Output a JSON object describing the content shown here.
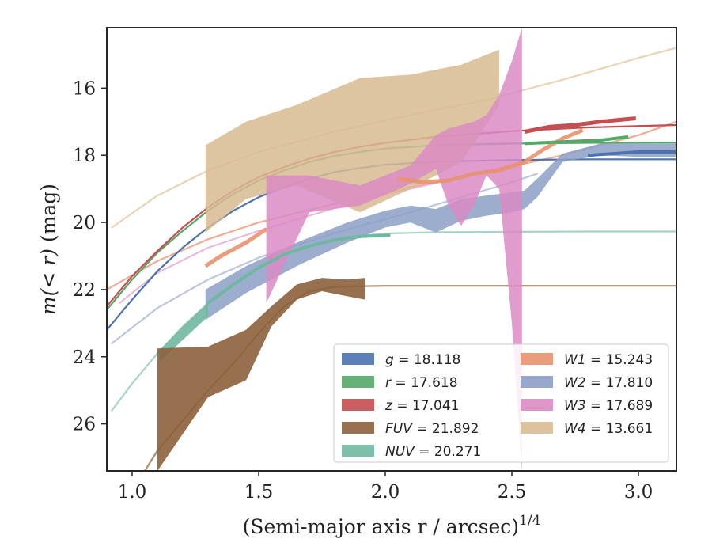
{
  "chart_data": {
    "type": "line",
    "xlabel": "(Semi-major axis r / arcsec)",
    "xlabel_exponent": "1/4",
    "ylabel_main": "m(< r)",
    "ylabel_unit": "(mag)",
    "xlim": [
      0.9,
      3.15
    ],
    "ylim": [
      27.4,
      14.2
    ],
    "y_inverted": true,
    "xticks": [
      1.0,
      1.5,
      2.0,
      2.5,
      3.0
    ],
    "xtick_labels": [
      "1.0",
      "1.5",
      "2.0",
      "2.5",
      "3.0"
    ],
    "yticks": [
      16,
      18,
      20,
      22,
      24,
      26
    ],
    "ytick_labels": [
      "16",
      "18",
      "20",
      "22",
      "24",
      "26"
    ],
    "legend_position": "lower-right",
    "legend": [
      {
        "name": "g",
        "value": "18.118",
        "color": "#4c72b0"
      },
      {
        "name": "r",
        "value": "17.618",
        "color": "#55a868"
      },
      {
        "name": "z",
        "value": "17.041",
        "color": "#c44e52"
      },
      {
        "name": "FUV",
        "value": "21.892",
        "color": "#8c613c"
      },
      {
        "name": "NUV",
        "value": "20.271",
        "color": "#6fb8a0"
      },
      {
        "name": "W1",
        "value": "15.243",
        "color": "#e8926c"
      },
      {
        "name": "W2",
        "value": "17.810",
        "color": "#8c9fc6"
      },
      {
        "name": "W3",
        "value": "17.689",
        "color": "#da8bc3"
      },
      {
        "name": "W4",
        "value": "13.661",
        "color": "#d8bb92"
      }
    ],
    "models": [
      {
        "series": "W4",
        "color": "#e8cfae",
        "width": 2.2,
        "opacity": 0.9,
        "x": [
          0.92,
          1.1,
          1.3,
          1.5,
          1.8,
          2.1,
          2.4,
          2.7,
          3.0,
          3.15
        ],
        "y": [
          20.15,
          19.2,
          18.45,
          17.9,
          17.3,
          16.8,
          16.35,
          15.75,
          15.1,
          14.8
        ]
      },
      {
        "series": "W1",
        "color": "#efa488",
        "width": 2.2,
        "opacity": 0.9,
        "x": [
          0.9,
          1.1,
          1.3,
          1.5,
          1.8,
          2.1,
          2.4,
          2.7,
          3.0,
          3.15
        ],
        "y": [
          22.0,
          21.15,
          20.5,
          20.0,
          19.45,
          18.95,
          18.5,
          18.0,
          17.4,
          17.0
        ]
      },
      {
        "series": "W3",
        "color": "#e7a8d6",
        "width": 2.0,
        "opacity": 0.85,
        "x": [
          0.95,
          1.1,
          1.3,
          1.5,
          1.7,
          1.9,
          2.1,
          2.3,
          2.55
        ],
        "y": [
          22.4,
          21.5,
          20.75,
          20.25,
          19.8,
          19.35,
          19.0,
          18.65,
          18.2
        ]
      },
      {
        "series": "W2",
        "color": "#b8c3df",
        "width": 2.2,
        "opacity": 0.95,
        "x": [
          0.92,
          1.1,
          1.3,
          1.5,
          1.7,
          1.9,
          2.1,
          2.3,
          2.5,
          2.6
        ],
        "y": [
          23.6,
          22.55,
          21.7,
          21.05,
          20.55,
          20.1,
          19.7,
          19.25,
          18.8,
          18.55
        ]
      },
      {
        "series": "NUV",
        "color": "#a2d2c3",
        "width": 2.2,
        "opacity": 0.95,
        "x": [
          0.92,
          1.0,
          1.1,
          1.2,
          1.3,
          1.4,
          1.5,
          1.6,
          1.7,
          1.8,
          1.9,
          2.0,
          2.2,
          2.5,
          2.8,
          3.15
        ],
        "y": [
          25.6,
          24.8,
          23.9,
          23.1,
          22.4,
          21.85,
          21.35,
          20.95,
          20.7,
          20.5,
          20.4,
          20.33,
          20.29,
          20.28,
          20.27,
          20.27
        ]
      },
      {
        "series": "FUV",
        "color": "#a97e5c",
        "width": 2.2,
        "opacity": 0.9,
        "x": [
          1.05,
          1.1,
          1.2,
          1.3,
          1.4,
          1.5,
          1.6,
          1.7,
          1.8,
          1.9,
          2.0,
          2.5,
          3.15
        ],
        "y": [
          27.4,
          26.8,
          25.9,
          25.0,
          24.2,
          23.3,
          22.5,
          22.05,
          21.92,
          21.9,
          21.89,
          21.89,
          21.89
        ]
      },
      {
        "series": "g",
        "color": "#4c72b0",
        "width": 2.2,
        "opacity": 1.0,
        "x": [
          0.9,
          1.0,
          1.1,
          1.2,
          1.3,
          1.4,
          1.5,
          1.6,
          1.7,
          1.8,
          1.9,
          2.0,
          2.2,
          2.5,
          2.8,
          3.15
        ],
        "y": [
          23.2,
          22.3,
          21.45,
          20.75,
          20.15,
          19.65,
          19.25,
          18.95,
          18.7,
          18.5,
          18.38,
          18.28,
          18.19,
          18.14,
          18.12,
          18.12
        ]
      },
      {
        "series": "r",
        "color": "#55a868",
        "width": 2.2,
        "opacity": 1.0,
        "x": [
          0.9,
          1.0,
          1.1,
          1.2,
          1.3,
          1.4,
          1.5,
          1.6,
          1.7,
          1.8,
          1.9,
          2.0,
          2.2,
          2.5,
          2.8,
          3.15
        ],
        "y": [
          22.6,
          21.7,
          20.9,
          20.25,
          19.65,
          19.15,
          18.75,
          18.45,
          18.2,
          18.02,
          17.9,
          17.8,
          17.7,
          17.65,
          17.63,
          17.62
        ]
      },
      {
        "series": "z",
        "color": "#c44e52",
        "width": 2.2,
        "opacity": 1.0,
        "x": [
          0.9,
          1.0,
          1.1,
          1.2,
          1.3,
          1.4,
          1.5,
          1.6,
          1.7,
          1.8,
          1.9,
          2.0,
          2.2,
          2.5,
          2.8,
          3.15
        ],
        "y": [
          22.5,
          21.6,
          20.85,
          20.15,
          19.55,
          19.05,
          18.65,
          18.35,
          18.1,
          17.9,
          17.75,
          17.63,
          17.45,
          17.28,
          17.17,
          17.1
        ]
      }
    ],
    "bands": [
      {
        "series": "W4",
        "color": "#d8bb92",
        "opacity": 0.85,
        "x": [
          1.29,
          1.45,
          1.65,
          1.9,
          2.1,
          2.3,
          2.45
        ],
        "y_upper": [
          17.7,
          17.0,
          16.5,
          15.7,
          15.6,
          15.3,
          14.85
        ],
        "y_lower": [
          20.3,
          19.3,
          18.9,
          19.7,
          19.0,
          18.2,
          16.5
        ]
      },
      {
        "series": "W2",
        "color": "#8c9fc6",
        "opacity": 0.85,
        "x": [
          1.29,
          1.45,
          1.65,
          1.85,
          2.0,
          2.1,
          2.2,
          2.3,
          2.4,
          2.5,
          2.55,
          2.6,
          2.7,
          2.85,
          3.0,
          3.15
        ],
        "y_upper": [
          22.0,
          21.3,
          20.6,
          20.0,
          19.65,
          19.5,
          19.6,
          19.3,
          19.2,
          19.1,
          19.05,
          18.7,
          17.95,
          17.65,
          17.65,
          17.65
        ],
        "y_lower": [
          22.9,
          22.1,
          21.3,
          20.6,
          20.15,
          20.0,
          20.3,
          19.95,
          19.8,
          19.7,
          19.6,
          19.25,
          18.2,
          18.0,
          18.05,
          18.05
        ]
      },
      {
        "series": "W3",
        "color": "#da8bc3",
        "opacity": 0.85,
        "x": [
          1.53,
          1.7,
          1.9,
          2.1,
          2.2,
          2.25,
          2.3,
          2.35,
          2.4,
          2.45,
          2.5,
          2.54
        ],
        "y_upper": [
          18.6,
          18.6,
          18.9,
          18.3,
          17.4,
          17.2,
          17.1,
          17.0,
          16.8,
          16.2,
          15.2,
          14.2
        ],
        "y_lower": [
          22.4,
          19.7,
          19.5,
          18.85,
          18.4,
          19.5,
          20.1,
          19.5,
          18.6,
          19.0,
          23.0,
          27.4
        ]
      },
      {
        "series": "NUV",
        "color": "#6fb8a0",
        "opacity": 0.9,
        "x": [
          1.11,
          1.2,
          1.3
        ],
        "y_upper": [
          23.8,
          23.1,
          22.4
        ],
        "y_lower": [
          24.15,
          23.5,
          22.8
        ]
      },
      {
        "series": "FUV",
        "color": "#8c613c",
        "opacity": 0.9,
        "x": [
          1.1,
          1.3,
          1.45,
          1.55,
          1.65,
          1.75,
          1.85,
          1.92
        ],
        "y_upper": [
          23.75,
          23.7,
          23.2,
          22.5,
          21.85,
          21.65,
          21.7,
          21.65
        ],
        "y_lower": [
          27.4,
          25.2,
          24.7,
          23.1,
          22.3,
          22.05,
          22.2,
          22.3
        ]
      }
    ],
    "obs_lines": [
      {
        "series": "W1",
        "color": "#e8926c",
        "width": 5.0,
        "opacity": 0.9,
        "x": [
          1.29,
          1.35,
          1.45,
          1.53
        ],
        "y": [
          21.3,
          21.0,
          20.6,
          20.2
        ]
      },
      {
        "series": "W1",
        "color": "#e8926c",
        "width": 5.0,
        "opacity": 0.9,
        "x": [
          2.05,
          2.15,
          2.25,
          2.35,
          2.45,
          2.55,
          2.62,
          2.7,
          2.78
        ],
        "y": [
          18.7,
          18.8,
          18.75,
          18.55,
          18.45,
          18.2,
          17.85,
          17.5,
          17.25
        ]
      },
      {
        "series": "NUV",
        "color": "#6fb8a0",
        "width": 4.0,
        "opacity": 1.0,
        "x": [
          1.3,
          1.4,
          1.5,
          1.6,
          1.7,
          1.8,
          1.9,
          2.02
        ],
        "y": [
          22.4,
          21.85,
          21.35,
          20.95,
          20.7,
          20.52,
          20.42,
          20.38
        ]
      },
      {
        "series": "r",
        "color": "#55a868",
        "width": 4.0,
        "opacity": 1.0,
        "x": [
          2.55,
          2.7,
          2.85,
          2.96
        ],
        "y": [
          17.65,
          17.6,
          17.55,
          17.45
        ]
      },
      {
        "series": "z",
        "color": "#c44e52",
        "width": 5.0,
        "opacity": 1.0,
        "x": [
          2.55,
          2.65,
          2.75,
          2.85,
          2.99
        ],
        "y": [
          17.3,
          17.15,
          17.1,
          17.0,
          16.9
        ]
      },
      {
        "series": "g",
        "color": "#4c72b0",
        "width": 4.0,
        "opacity": 1.0,
        "x": [
          2.8,
          2.9,
          3.0,
          3.15
        ],
        "y": [
          18.0,
          17.95,
          17.9,
          17.9
        ]
      }
    ]
  }
}
